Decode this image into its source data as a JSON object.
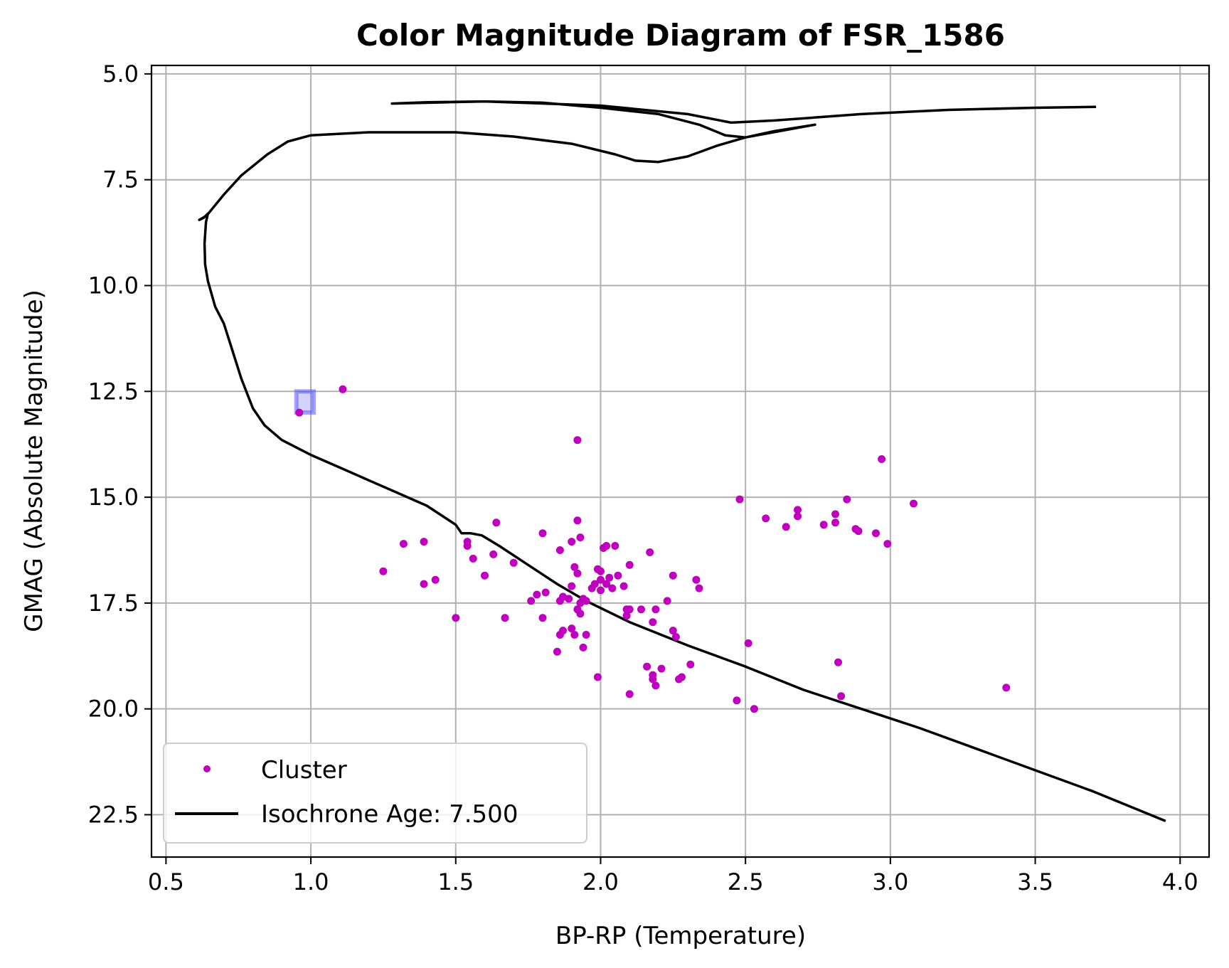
{
  "chart_data": {
    "type": "scatter",
    "title": "Color Magnitude Diagram of FSR_1586",
    "xlabel": "BP-RP (Temperature)",
    "ylabel": "GMAG (Absolute Magnitude)",
    "xlim": [
      0.45,
      4.1
    ],
    "ylim": [
      23.5,
      4.8
    ],
    "y_inverted": true,
    "x_ticks": [
      0.5,
      1.0,
      1.5,
      2.0,
      2.5,
      3.0,
      3.5,
      4.0
    ],
    "x_tick_labels": [
      "0.5",
      "1.0",
      "1.5",
      "2.0",
      "2.5",
      "3.0",
      "3.5",
      "4.0"
    ],
    "y_ticks": [
      5.0,
      7.5,
      10.0,
      12.5,
      15.0,
      17.5,
      20.0,
      22.5
    ],
    "y_tick_labels": [
      "5.0",
      "7.5",
      "10.0",
      "12.5",
      "15.0",
      "17.5",
      "20.0",
      "22.5"
    ],
    "grid": true,
    "legend_position": "lower-left",
    "series": [
      {
        "name": "Cluster",
        "kind": "scatter",
        "color": "#bf00bf",
        "points": [
          [
            0.96,
            13.0
          ],
          [
            1.11,
            12.45
          ],
          [
            1.92,
            13.65
          ],
          [
            2.97,
            14.1
          ],
          [
            2.48,
            15.05
          ],
          [
            2.85,
            15.05
          ],
          [
            3.08,
            15.15
          ],
          [
            2.68,
            15.3
          ],
          [
            2.81,
            15.4
          ],
          [
            2.68,
            15.45
          ],
          [
            2.57,
            15.5
          ],
          [
            1.92,
            15.55
          ],
          [
            1.64,
            15.6
          ],
          [
            2.81,
            15.6
          ],
          [
            2.77,
            15.65
          ],
          [
            2.64,
            15.7
          ],
          [
            2.88,
            15.75
          ],
          [
            2.89,
            15.8
          ],
          [
            2.95,
            15.85
          ],
          [
            1.8,
            15.85
          ],
          [
            1.93,
            15.95
          ],
          [
            1.9,
            16.05
          ],
          [
            1.54,
            16.05
          ],
          [
            1.32,
            16.1
          ],
          [
            1.39,
            16.05
          ],
          [
            2.99,
            16.1
          ],
          [
            1.54,
            16.15
          ],
          [
            2.05,
            16.15
          ],
          [
            2.01,
            16.2
          ],
          [
            2.02,
            16.15
          ],
          [
            1.86,
            16.25
          ],
          [
            2.17,
            16.3
          ],
          [
            1.63,
            16.35
          ],
          [
            1.56,
            16.45
          ],
          [
            1.7,
            16.55
          ],
          [
            2.1,
            16.6
          ],
          [
            1.91,
            16.65
          ],
          [
            1.99,
            16.7
          ],
          [
            1.25,
            16.75
          ],
          [
            2.0,
            16.75
          ],
          [
            1.92,
            16.8
          ],
          [
            1.6,
            16.85
          ],
          [
            2.25,
            16.85
          ],
          [
            2.06,
            16.85
          ],
          [
            2.03,
            16.9
          ],
          [
            2.33,
            16.95
          ],
          [
            1.43,
            16.95
          ],
          [
            2.0,
            16.95
          ],
          [
            1.39,
            17.05
          ],
          [
            2.02,
            17.05
          ],
          [
            1.98,
            17.05
          ],
          [
            1.9,
            17.1
          ],
          [
            2.08,
            17.1
          ],
          [
            1.97,
            17.15
          ],
          [
            2.0,
            17.2
          ],
          [
            2.34,
            17.15
          ],
          [
            2.04,
            17.15
          ],
          [
            1.81,
            17.25
          ],
          [
            1.78,
            17.3
          ],
          [
            1.87,
            17.35
          ],
          [
            1.89,
            17.4
          ],
          [
            1.94,
            17.4
          ],
          [
            1.76,
            17.45
          ],
          [
            1.86,
            17.45
          ],
          [
            1.95,
            17.45
          ],
          [
            2.23,
            17.45
          ],
          [
            1.93,
            17.5
          ],
          [
            1.92,
            17.65
          ],
          [
            2.09,
            17.65
          ],
          [
            2.1,
            17.65
          ],
          [
            2.14,
            17.65
          ],
          [
            2.19,
            17.65
          ],
          [
            1.93,
            17.75
          ],
          [
            1.5,
            17.85
          ],
          [
            1.67,
            17.85
          ],
          [
            2.09,
            17.8
          ],
          [
            1.8,
            17.85
          ],
          [
            2.18,
            17.95
          ],
          [
            1.9,
            18.1
          ],
          [
            1.87,
            18.15
          ],
          [
            2.25,
            18.15
          ],
          [
            1.86,
            18.25
          ],
          [
            1.95,
            18.25
          ],
          [
            1.91,
            18.25
          ],
          [
            2.26,
            18.3
          ],
          [
            2.51,
            18.45
          ],
          [
            1.94,
            18.55
          ],
          [
            1.85,
            18.65
          ],
          [
            2.82,
            18.9
          ],
          [
            2.31,
            18.95
          ],
          [
            2.16,
            19.0
          ],
          [
            2.21,
            19.05
          ],
          [
            2.18,
            19.2
          ],
          [
            1.99,
            19.25
          ],
          [
            2.28,
            19.25
          ],
          [
            2.27,
            19.3
          ],
          [
            2.18,
            19.3
          ],
          [
            2.19,
            19.45
          ],
          [
            3.4,
            19.5
          ],
          [
            2.1,
            19.65
          ],
          [
            2.83,
            19.7
          ],
          [
            2.47,
            19.8
          ],
          [
            2.53,
            20.0
          ]
        ]
      },
      {
        "name": "Isochrone Age: 7.500",
        "kind": "line",
        "color": "#000000",
        "points": [
          [
            3.95,
            22.65
          ],
          [
            3.7,
            21.95
          ],
          [
            3.5,
            21.45
          ],
          [
            3.3,
            20.95
          ],
          [
            3.1,
            20.45
          ],
          [
            2.9,
            20.0
          ],
          [
            2.7,
            19.55
          ],
          [
            2.5,
            19.0
          ],
          [
            2.3,
            18.5
          ],
          [
            2.1,
            17.95
          ],
          [
            1.95,
            17.45
          ],
          [
            1.85,
            17.05
          ],
          [
            1.75,
            16.6
          ],
          [
            1.65,
            16.15
          ],
          [
            1.59,
            15.9
          ],
          [
            1.55,
            15.85
          ],
          [
            1.52,
            15.85
          ],
          [
            1.5,
            15.65
          ],
          [
            1.4,
            15.2
          ],
          [
            1.3,
            14.9
          ],
          [
            1.2,
            14.6
          ],
          [
            1.1,
            14.3
          ],
          [
            1.0,
            14.0
          ],
          [
            0.9,
            13.65
          ],
          [
            0.84,
            13.3
          ],
          [
            0.8,
            12.9
          ],
          [
            0.76,
            12.2
          ],
          [
            0.73,
            11.55
          ],
          [
            0.7,
            10.9
          ],
          [
            0.67,
            10.5
          ],
          [
            0.645,
            9.9
          ],
          [
            0.635,
            9.5
          ],
          [
            0.633,
            9.0
          ],
          [
            0.638,
            8.5
          ],
          [
            0.645,
            8.3
          ],
          [
            0.63,
            8.4
          ],
          [
            0.615,
            8.45
          ],
          [
            0.64,
            8.35
          ],
          [
            0.7,
            7.85
          ],
          [
            0.76,
            7.4
          ],
          [
            0.85,
            6.9
          ],
          [
            0.92,
            6.6
          ],
          [
            1.0,
            6.45
          ],
          [
            1.2,
            6.38
          ],
          [
            1.5,
            6.38
          ],
          [
            1.7,
            6.48
          ],
          [
            1.9,
            6.65
          ],
          [
            2.05,
            6.9
          ],
          [
            2.12,
            7.05
          ],
          [
            2.2,
            7.08
          ],
          [
            2.3,
            6.95
          ],
          [
            2.4,
            6.7
          ],
          [
            2.5,
            6.5
          ],
          [
            2.6,
            6.35
          ],
          [
            2.74,
            6.2
          ],
          [
            2.5,
            6.5
          ],
          [
            2.43,
            6.45
          ],
          [
            2.34,
            6.2
          ],
          [
            2.2,
            5.95
          ],
          [
            2.0,
            5.8
          ],
          [
            1.8,
            5.68
          ],
          [
            1.6,
            5.65
          ],
          [
            1.4,
            5.67
          ],
          [
            1.28,
            5.7
          ],
          [
            1.6,
            5.65
          ],
          [
            2.0,
            5.75
          ],
          [
            2.3,
            5.95
          ],
          [
            2.45,
            6.15
          ],
          [
            2.6,
            6.1
          ],
          [
            2.9,
            5.95
          ],
          [
            3.2,
            5.85
          ],
          [
            3.5,
            5.8
          ],
          [
            3.71,
            5.78
          ]
        ]
      }
    ],
    "highlight_box": {
      "x_range": [
        0.95,
        1.01
      ],
      "y_range": [
        12.5,
        13.0
      ],
      "color": "#4a4aff"
    }
  }
}
